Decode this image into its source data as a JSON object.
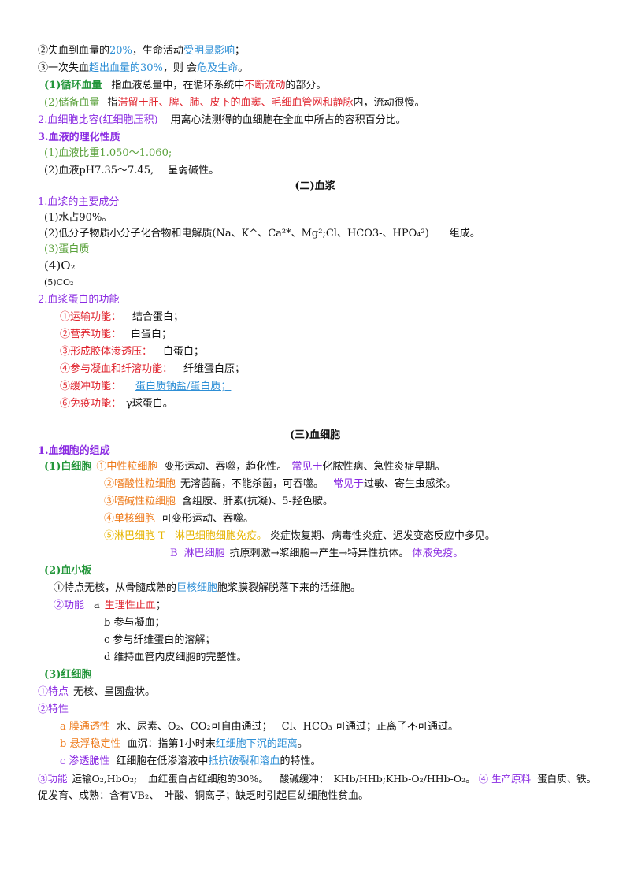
{
  "lines": {
    "l1": [
      "②失血到血量的",
      "20%",
      "，生命活动",
      "受明显影响",
      "；"
    ],
    "l2": [
      "③一次失血",
      "超出血量的30%",
      "，则 会",
      "危及生命",
      "。"
    ],
    "l3": [
      "(1)循环血量",
      "指血液总量中，在循环系统中",
      "不断流动",
      "的部分。"
    ],
    "l4": [
      "(2)储备血量",
      "指",
      "滞留于肝、脾、肺、皮下的血窦、毛细血管网和静脉",
      "内，流动很慢。"
    ],
    "l5": [
      "2.血细胞比容(红细胞压积)",
      "用离心法测得的血细胞在全血中所占的容积百分比。"
    ],
    "l6": [
      "3.血液的理化性质"
    ],
    "l7": [
      "(1)血液比重1.050～1.060;"
    ],
    "l8": [
      "(2)血液pH7.35～7.45,",
      "呈弱碱性。"
    ],
    "l9": [
      "(二)血浆"
    ],
    "l10": [
      "1.血浆的主要成分"
    ],
    "l11": [
      "(1)水占90%。"
    ],
    "l12": [
      "(2)低分子物质小分子化合物和电解质(Na、K^、Ca²*、Mg²;Cl、HCO3-、HPO₄²)",
      "组成。"
    ],
    "l13": [
      "(3)蛋白质"
    ],
    "l14": [
      "(4)O₂"
    ],
    "l15": [
      "(5)CO₂"
    ],
    "l16": [
      "2.血浆蛋白的功能"
    ],
    "l17": [
      "①运输功能：",
      "结合蛋白；"
    ],
    "l18": [
      "②营养功能：",
      "白蛋白；"
    ],
    "l19": [
      "③形成胶体渗透压：",
      "白蛋白；"
    ],
    "l20": [
      "④参与凝血和纤溶功能：",
      "纤维蛋白原；"
    ],
    "l21": [
      "⑤缓冲功能：",
      "蛋白质钠盐/蛋白质；"
    ],
    "l22": [
      "⑥免疫功能：",
      "γ球蛋白。"
    ],
    "l23": [
      "(三)血细胞"
    ],
    "l24": [
      "1.血细胞的组成"
    ],
    "l25": [
      "(1)白细胞",
      "①中性粒细胞",
      "变形运动、吞噬，趋化性。",
      "常见于",
      "化脓性病、急性炎症早期。"
    ],
    "l26": [
      "②嗜酸性粒细胞",
      "无溶菌酶，不能杀菌，可吞噬。",
      "常见于",
      "过敏、寄生虫感染。"
    ],
    "l27": [
      "③嗜碱性粒细胞",
      "含组胺、肝素(抗凝)、5-羟色胺。"
    ],
    "l28": [
      "④单核细胞",
      "可变形运动、吞噬。"
    ],
    "l29": [
      "⑤淋巴细胞 T",
      "淋巴细胞细胞免疫。",
      "炎症恢复期、病毒性炎症、迟发变态反应中多见。"
    ],
    "l30": [
      "B",
      "淋巴细胞",
      "抗原刺激→浆细胞→产生→特异性抗体。",
      "体液免疫。"
    ],
    "l31": [
      "(2)血小板"
    ],
    "l32": [
      "①特点无核，从骨髓成熟的",
      "巨核细胞",
      "胞浆膜裂解脱落下来的活细胞。"
    ],
    "l33": [
      "②功能",
      "a",
      "生理性止血",
      "；"
    ],
    "l34": [
      "b 参与凝血；"
    ],
    "l35": [
      "c 参与纤维蛋白的溶解；"
    ],
    "l36": [
      "d 维持血管内皮细胞的完整性。"
    ],
    "l37": [
      "(3)红细胞"
    ],
    "l38": [
      "①特点",
      "无核、呈圆盘状。"
    ],
    "l39": [
      "②特性"
    ],
    "l40": [
      "a 膜通透性",
      "水、尿素、O₂、CO₂可自由通过；",
      "Cl、HCO₃ 可通过；正离子不可通过。"
    ],
    "l41": [
      "b 悬浮稳定性",
      "血沉：指第1小时末",
      "红细胞下沉的距离",
      "。"
    ],
    "l42": [
      "c 渗透脆性",
      "红细胞在低渗溶液中",
      "抵抗破裂和溶血",
      "的特性。"
    ],
    "l43": [
      "③功能",
      "运输O₂,HbO₂;",
      "血红蛋白占红细胞的30%。",
      "酸碱缓冲：",
      "KHb/HHb;KHb-O₂/HHb-O₂。",
      "④ 生产原料",
      "蛋白质、铁。"
    ],
    "l44": [
      "促发育、成熟：含有VB₂、",
      "叶酸、铜离子；缺乏时引起巨幼细胞性贫血。"
    ]
  }
}
